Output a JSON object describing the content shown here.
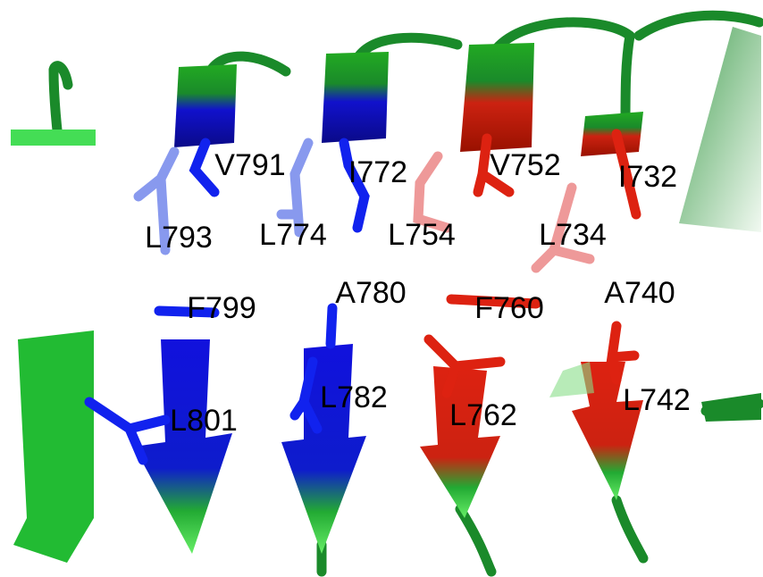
{
  "labels": [
    "V791",
    "I772",
    "V752",
    "I732",
    "L793",
    "L774",
    "L754",
    "L734",
    "F799",
    "A780",
    "F760",
    "A740",
    "L801",
    "L782",
    "L762",
    "L742"
  ]
}
